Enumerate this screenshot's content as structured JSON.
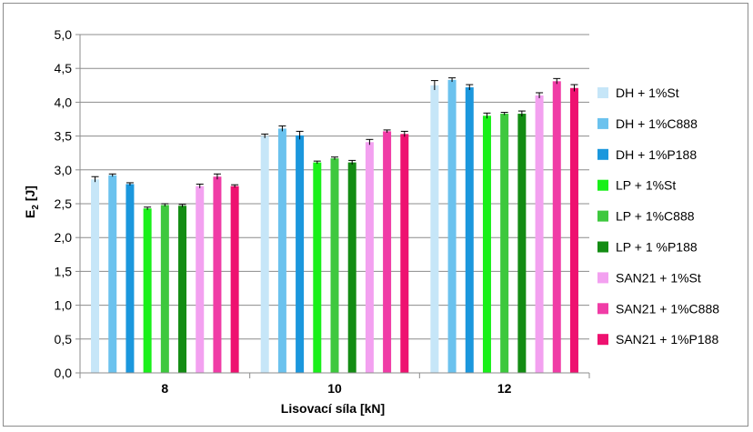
{
  "chart_data": {
    "type": "bar",
    "title": "",
    "xlabel": "Lisovací síla [kN]",
    "ylabel": {
      "main": "E",
      "sub": "2",
      "unit": " [J]"
    },
    "ylim": [
      0,
      5
    ],
    "yticks": [
      "0,0",
      "0,5",
      "1,0",
      "1,5",
      "2,0",
      "2,5",
      "3,0",
      "3,5",
      "4,0",
      "4,5",
      "5,0"
    ],
    "grid": true,
    "legend_position": "right",
    "categories": [
      "8",
      "10",
      "12"
    ],
    "series": [
      {
        "name": "DH + 1%St",
        "color": "#c6e6f8",
        "values": [
          2.86,
          3.5,
          4.25
        ],
        "errors": [
          0.04,
          0.03,
          0.07
        ]
      },
      {
        "name": "DH + 1%C888",
        "color": "#6bc2ee",
        "values": [
          2.92,
          3.61,
          4.33
        ],
        "errors": [
          0.02,
          0.04,
          0.03
        ]
      },
      {
        "name": "DH + 1%P188",
        "color": "#1b97dd",
        "values": [
          2.79,
          3.51,
          4.22
        ],
        "errors": [
          0.02,
          0.06,
          0.04
        ]
      },
      {
        "name": "LP + 1%St",
        "color": "#19f019",
        "values": [
          2.43,
          3.11,
          3.8
        ],
        "errors": [
          0.02,
          0.02,
          0.04
        ]
      },
      {
        "name": "LP + 1%C888",
        "color": "#3ec83e",
        "values": [
          2.48,
          3.17,
          3.83
        ],
        "errors": [
          0.02,
          0.02,
          0.02
        ]
      },
      {
        "name": "LP + 1 %P188",
        "color": "#138c13",
        "values": [
          2.47,
          3.11,
          3.83
        ],
        "errors": [
          0.02,
          0.03,
          0.04
        ]
      },
      {
        "name": "SAN21 + 1%St",
        "color": "#f3a1f0",
        "values": [
          2.76,
          3.41,
          4.1
        ],
        "errors": [
          0.03,
          0.04,
          0.04
        ]
      },
      {
        "name": "SAN21 + 1%C888",
        "color": "#f03ca6",
        "values": [
          2.9,
          3.57,
          4.31
        ],
        "errors": [
          0.04,
          0.02,
          0.04
        ]
      },
      {
        "name": "SAN21 + 1%P188",
        "color": "#ee1170",
        "values": [
          2.76,
          3.53,
          4.21
        ],
        "errors": [
          0.02,
          0.04,
          0.05
        ]
      }
    ]
  }
}
